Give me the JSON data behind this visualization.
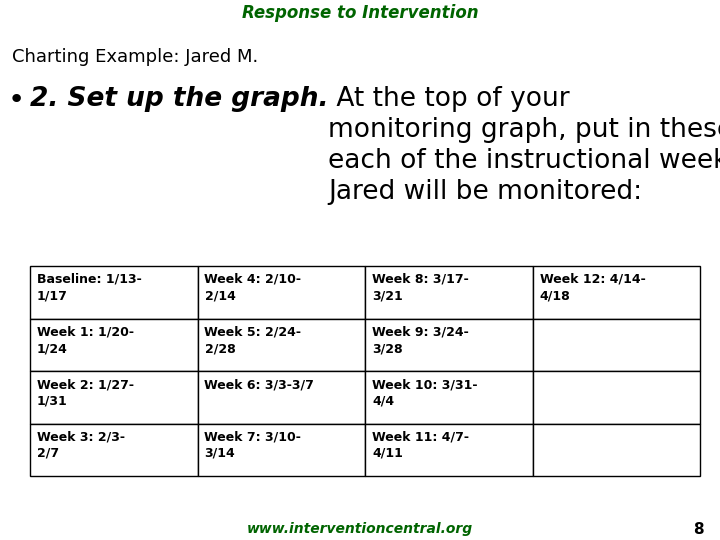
{
  "title": "Response to Intervention",
  "subtitle": "Charting Example: Jared M.",
  "title_color": "#006400",
  "title_bg": "#ffff00",
  "subtitle_color": "#000000",
  "footer_text": "www.interventioncentral.org",
  "footer_color": "#006400",
  "footer_bg": "#ffff00",
  "page_number": "8",
  "table_data": [
    [
      "Baseline: 1/13-\n1/17",
      "Week 4: 2/10-\n2/14",
      "Week 8: 3/17-\n3/21",
      "Week 12: 4/14-\n4/18"
    ],
    [
      "Week 1: 1/20-\n1/24",
      "Week 5: 2/24-\n2/28",
      "Week 9: 3/24-\n3/28",
      ""
    ],
    [
      "Week 2: 1/27-\n1/31",
      "Week 6: 3/3-3/7",
      "Week 10: 3/31-\n4/4",
      ""
    ],
    [
      "Week 3: 2/3-\n2/7",
      "Week 7: 3/10-\n3/14",
      "Week 11: 4/7-\n4/11",
      ""
    ]
  ],
  "bg_color": "#ffffff",
  "table_font_size": 9.0,
  "bullet_bold_italic_text": "2. Set up the graph.",
  "bullet_normal_text": " At the top of your\nmonitoring graph, put in these date-spans for\neach of the instructional weeks during which\nJared will be monitored:",
  "bullet_fontsize": 19
}
